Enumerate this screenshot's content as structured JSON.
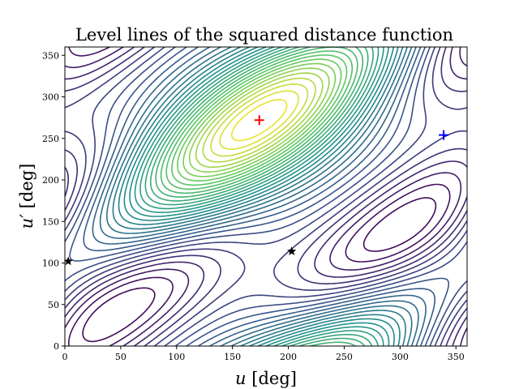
{
  "chart_data": {
    "type": "contour",
    "title": "Level lines of the squared distance function",
    "xlabel": "u [deg]",
    "xlabel_var": "u",
    "xlabel_unit": " [deg]",
    "ylabel": "u′ [deg]",
    "ylabel_var": "u′",
    "ylabel_unit": " [deg]",
    "xlim": [
      0,
      360
    ],
    "ylim": [
      0,
      360
    ],
    "x_ticks": [
      0,
      50,
      100,
      150,
      200,
      250,
      300,
      350
    ],
    "y_ticks": [
      0,
      50,
      100,
      150,
      200,
      250,
      300,
      350
    ],
    "colormap": [
      "#440154",
      "#3b528b",
      "#21918c",
      "#5ec962",
      "#fde725"
    ],
    "grid": false,
    "legend": "none",
    "markers": [
      {
        "name": "maximum",
        "symbol": "plus",
        "color": "#ff0000",
        "x": 174,
        "y": 272
      },
      {
        "name": "saddle",
        "symbol": "plus",
        "color": "#0000ff",
        "x": 339,
        "y": 254
      },
      {
        "name": "minimum",
        "symbol": "star",
        "color": "#000000",
        "x": 3,
        "y": 102
      },
      {
        "name": "minimum",
        "symbol": "star",
        "color": "#000000",
        "x": 203,
        "y": 114
      }
    ]
  }
}
